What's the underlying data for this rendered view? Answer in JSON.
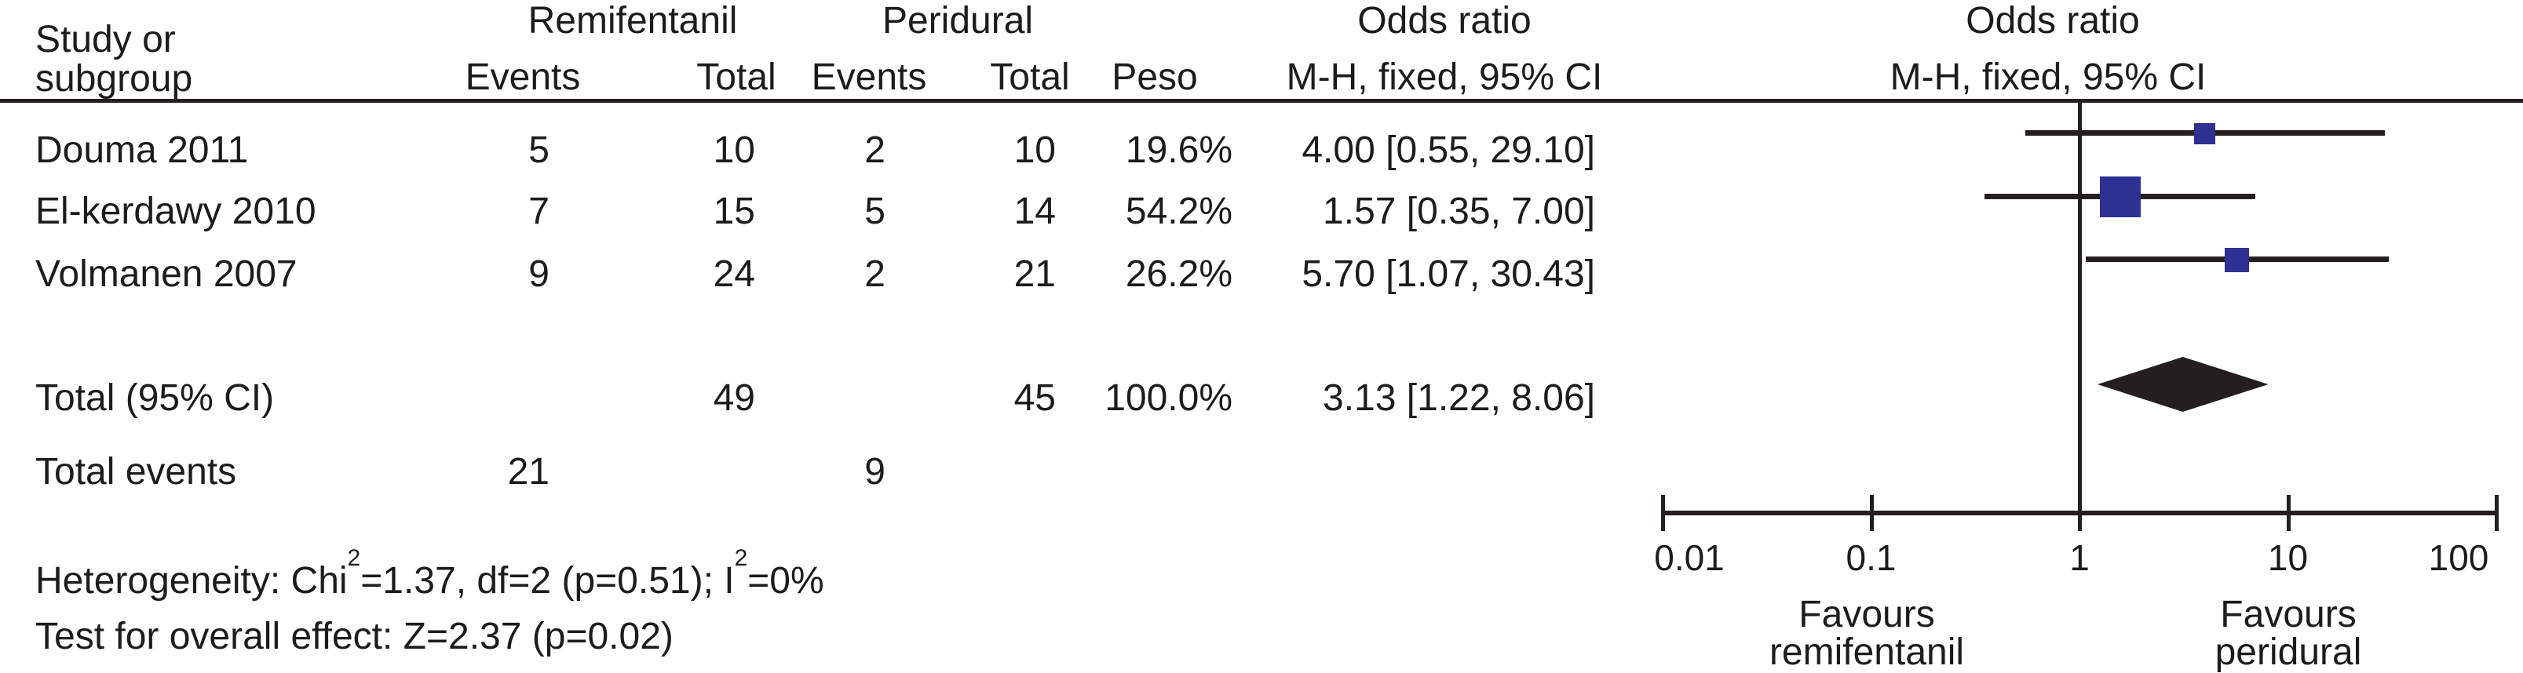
{
  "colors": {
    "marker_blue": "#2e3192",
    "diamond_black": "#231f20",
    "line_black": "#231f20",
    "text_black": "#1c1c1c"
  },
  "table_header": {
    "study_col_line1": "Study or",
    "study_col_line2": "subgroup",
    "group_treatment": "Remifentanil",
    "group_control": "Peridural",
    "events": "Events",
    "total": "Total",
    "weight": "Peso",
    "or_col_line1": "Odds ratio",
    "or_col_line2": "M-H, fixed, 95% CI",
    "plot_col_line1": "Odds ratio",
    "plot_col_line2": "M-H, fixed, 95% CI"
  },
  "chart_data": {
    "type": "scatter",
    "variant": "forest-plot",
    "effect_measure": "Odds ratio",
    "method_label": "M-H, fixed, 95% CI",
    "x_scale": "log10",
    "xlim": [
      0.01,
      100
    ],
    "x_tick_labels": [
      "0.01",
      "0.1",
      "1",
      "10",
      "100"
    ],
    "null_line_value": 1,
    "studies": [
      {
        "label": "Douma 2011",
        "events_treatment": "5",
        "total_treatment": "10",
        "events_control": "2",
        "total_control": "10",
        "weight_pct": 19.6,
        "weight_label": "19.6%",
        "or": 4.0,
        "ci_low": 0.55,
        "ci_high": 29.1,
        "or_text": "4.00 [0.55, 29.10]"
      },
      {
        "label": "El-kerdawy 2010",
        "events_treatment": "7",
        "total_treatment": "15",
        "events_control": "5",
        "total_control": "14",
        "weight_pct": 54.2,
        "weight_label": "54.2%",
        "or": 1.57,
        "ci_low": 0.35,
        "ci_high": 7.0,
        "or_text": "1.57 [0.35, 7.00]"
      },
      {
        "label": "Volmanen 2007",
        "events_treatment": "9",
        "total_treatment": "24",
        "events_control": "2",
        "total_control": "21",
        "weight_pct": 26.2,
        "weight_label": "26.2%",
        "or": 5.7,
        "ci_low": 1.07,
        "ci_high": 30.43,
        "or_text": "5.70 [1.07, 30.43]"
      }
    ],
    "total": {
      "label": "Total (95% CI)",
      "total_treatment": "49",
      "total_control": "45",
      "weight_label": "100.0%",
      "or": 3.13,
      "ci_low": 1.22,
      "ci_high": 8.06,
      "or_text": "3.13 [1.22, 8.06]"
    },
    "total_events": {
      "label": "Total events",
      "events_treatment": "21",
      "events_control": "9"
    },
    "footnotes": {
      "het_prefix": "Heterogeneity: Chi",
      "het_sup1": "2",
      "het_mid": "=1.37, df=2 (p=0.51); I",
      "het_sup2": "2",
      "het_suffix": "=0%",
      "overall_effect": "Test for overall effect: Z=2.37 (p=0.02)"
    },
    "favours_left": [
      "Favours",
      "remifentanil"
    ],
    "favours_right": [
      "Favours",
      "peridural"
    ]
  }
}
